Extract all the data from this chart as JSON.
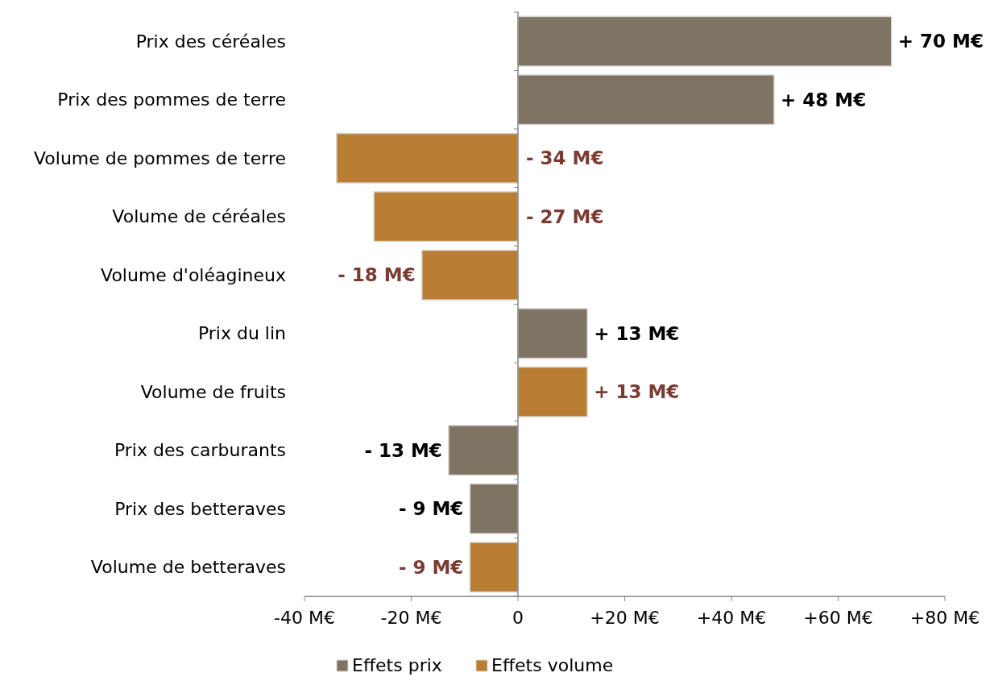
{
  "chart_data": {
    "type": "bar",
    "orientation": "horizontal",
    "categories": [
      "Prix des céréales",
      "Prix des pommes de terre",
      "Volume de pommes de terre",
      "Volume de céréales",
      "Volume d'oléagineux",
      "Prix du lin",
      "Volume de fruits",
      "Prix des carburants",
      "Prix des betteraves",
      "Volume de betteraves"
    ],
    "series": [
      {
        "name": "Effets prix",
        "color": "#7f7364",
        "values": [
          70,
          48,
          null,
          null,
          null,
          13,
          null,
          -13,
          -9,
          null
        ],
        "value_labels": [
          "+ 70 M€",
          "+ 48 M€",
          null,
          null,
          null,
          "+ 13 M€",
          null,
          "- 13 M€",
          "- 9 M€",
          null
        ]
      },
      {
        "name": "Effets volume",
        "color": "#b97d33",
        "values": [
          null,
          null,
          -34,
          -27,
          -18,
          null,
          13,
          null,
          null,
          -9
        ],
        "value_labels": [
          null,
          null,
          "- 34 M€",
          "- 27 M€",
          "- 18 M€",
          null,
          "+ 13 M€",
          null,
          null,
          "- 9 M€"
        ]
      }
    ],
    "xlim": [
      -40,
      80
    ],
    "xticks": [
      {
        "value": -40,
        "label": "-40 M€"
      },
      {
        "value": -20,
        "label": "-20 M€"
      },
      0,
      {
        "value": 20,
        "label": "+20 M€"
      },
      {
        "value": 40,
        "label": "+40 M€"
      },
      {
        "value": 60,
        "label": "+60 M€"
      },
      {
        "value": 80,
        "label": "+80 M€"
      }
    ],
    "legend": "bottom"
  }
}
